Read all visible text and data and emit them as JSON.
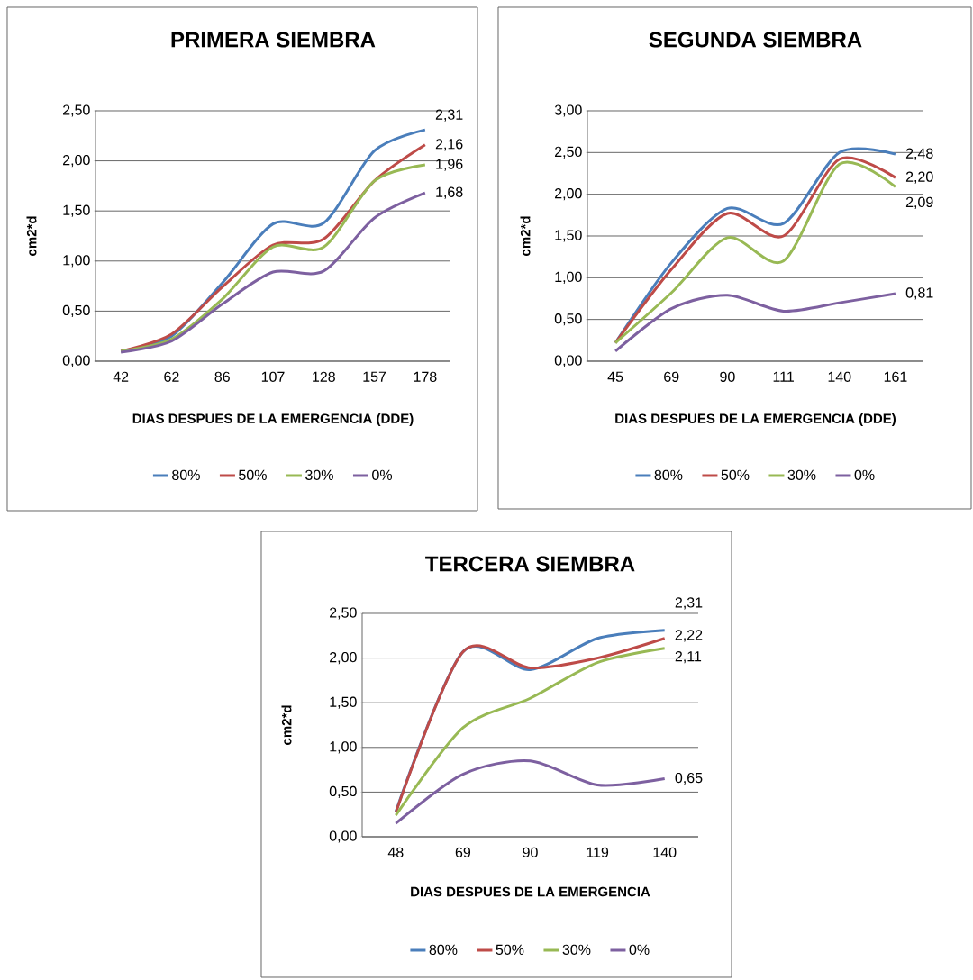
{
  "chart_data": [
    {
      "type": "line",
      "title": "PRIMERA SIEMBRA",
      "xlabel": "DIAS DESPUES DE LA EMERGENCIA (DDE)",
      "ylabel": "cm2*d",
      "categories": [
        "42",
        "62",
        "86",
        "107",
        "128",
        "157",
        "178"
      ],
      "series": [
        {
          "name": "80%",
          "color": "#4a7ebb",
          "values": [
            0.1,
            0.25,
            0.78,
            1.37,
            1.38,
            2.1,
            2.31
          ],
          "value_labels": [
            null,
            null,
            null,
            null,
            null,
            null,
            "2,31"
          ]
        },
        {
          "name": "50%",
          "color": "#be4b48",
          "values": [
            0.1,
            0.27,
            0.74,
            1.16,
            1.22,
            1.8,
            2.16
          ],
          "value_labels": [
            null,
            null,
            null,
            null,
            null,
            null,
            "2,16"
          ]
        },
        {
          "name": "30%",
          "color": "#98b954",
          "values": [
            0.1,
            0.22,
            0.62,
            1.14,
            1.14,
            1.8,
            1.96
          ],
          "value_labels": [
            null,
            null,
            null,
            null,
            null,
            null,
            "1,96"
          ]
        },
        {
          "name": "0%",
          "color": "#7d60a0",
          "values": [
            0.09,
            0.2,
            0.57,
            0.89,
            0.9,
            1.43,
            1.68
          ],
          "value_labels": [
            null,
            null,
            null,
            null,
            null,
            null,
            "1,68"
          ]
        }
      ],
      "ylim": [
        0,
        2.5
      ],
      "yticks": [
        {
          "value": 0,
          "label": "0,00"
        },
        {
          "value": 0.5,
          "label": "0,50"
        },
        {
          "value": 1,
          "label": "1,00"
        },
        {
          "value": 1.5,
          "label": "1,50"
        },
        {
          "value": 2,
          "label": "2,00"
        },
        {
          "value": 2.5,
          "label": "2,50"
        }
      ],
      "grid": "y",
      "legend": "bottom",
      "marker": "none",
      "line_style": "solid"
    },
    {
      "type": "line",
      "title": "SEGUNDA SIEMBRA",
      "xlabel": "DIAS DESPUES DE LA EMERGENCIA (DDE)",
      "ylabel": "cm2*d",
      "categories": [
        "45",
        "69",
        "90",
        "111",
        "140",
        "161"
      ],
      "series": [
        {
          "name": "80%",
          "color": "#4a7ebb",
          "values": [
            0.22,
            1.18,
            1.83,
            1.65,
            2.5,
            2.48
          ],
          "value_labels": [
            null,
            null,
            null,
            null,
            null,
            "2,48"
          ]
        },
        {
          "name": "50%",
          "color": "#be4b48",
          "values": [
            0.22,
            1.1,
            1.77,
            1.5,
            2.42,
            2.2
          ],
          "value_labels": [
            null,
            null,
            null,
            null,
            null,
            "2,20"
          ]
        },
        {
          "name": "30%",
          "color": "#98b954",
          "values": [
            0.22,
            0.82,
            1.48,
            1.2,
            2.36,
            2.09
          ],
          "value_labels": [
            null,
            null,
            null,
            null,
            null,
            "2,09"
          ]
        },
        {
          "name": "0%",
          "color": "#7d60a0",
          "values": [
            0.12,
            0.63,
            0.79,
            0.6,
            0.7,
            0.81
          ],
          "value_labels": [
            null,
            null,
            null,
            null,
            null,
            "0,81"
          ]
        }
      ],
      "ylim": [
        0,
        3
      ],
      "yticks": [
        {
          "value": 0,
          "label": "0,00"
        },
        {
          "value": 0.5,
          "label": "0,50"
        },
        {
          "value": 1,
          "label": "1,00"
        },
        {
          "value": 1.5,
          "label": "1,50"
        },
        {
          "value": 2,
          "label": "2,00"
        },
        {
          "value": 2.5,
          "label": "2,50"
        },
        {
          "value": 3,
          "label": "3,00"
        }
      ],
      "grid": "y",
      "legend": "bottom",
      "marker": "none",
      "line_style": "solid"
    },
    {
      "type": "line",
      "title": "TERCERA SIEMBRA",
      "xlabel": "DIAS DESPUES DE LA EMERGENCIA",
      "ylabel": "cm2*d",
      "categories": [
        "48",
        "69",
        "90",
        "119",
        "140"
      ],
      "series": [
        {
          "name": "80%",
          "color": "#4a7ebb",
          "values": [
            0.28,
            2.07,
            1.87,
            2.22,
            2.31
          ],
          "value_labels": [
            null,
            null,
            null,
            null,
            "2,31"
          ]
        },
        {
          "name": "50%",
          "color": "#be4b48",
          "values": [
            0.27,
            2.07,
            1.89,
            2.0,
            2.22
          ],
          "value_labels": [
            null,
            null,
            null,
            null,
            "2,22"
          ]
        },
        {
          "name": "30%",
          "color": "#98b954",
          "values": [
            0.24,
            1.22,
            1.55,
            1.95,
            2.11
          ],
          "value_labels": [
            null,
            null,
            null,
            null,
            "2,11"
          ]
        },
        {
          "name": "0%",
          "color": "#7d60a0",
          "values": [
            0.15,
            0.7,
            0.85,
            0.58,
            0.65
          ],
          "value_labels": [
            null,
            null,
            null,
            null,
            "0,65"
          ]
        }
      ],
      "ylim": [
        0,
        2.5
      ],
      "yticks": [
        {
          "value": 0,
          "label": "0,00"
        },
        {
          "value": 0.5,
          "label": "0,50"
        },
        {
          "value": 1,
          "label": "1,00"
        },
        {
          "value": 1.5,
          "label": "1,50"
        },
        {
          "value": 2,
          "label": "2,00"
        },
        {
          "value": 2.5,
          "label": "2,50"
        }
      ],
      "grid": "y",
      "legend": "bottom",
      "marker": "none",
      "line_style": "solid"
    }
  ]
}
